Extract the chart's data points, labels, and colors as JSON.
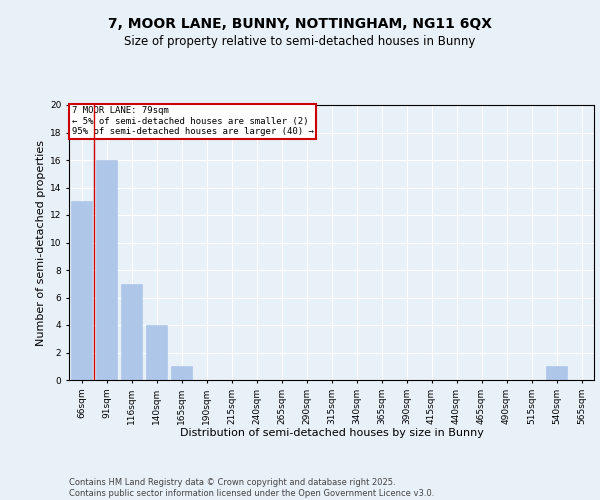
{
  "title": "7, MOOR LANE, BUNNY, NOTTINGHAM, NG11 6QX",
  "subtitle": "Size of property relative to semi-detached houses in Bunny",
  "xlabel": "Distribution of semi-detached houses by size in Bunny",
  "ylabel": "Number of semi-detached properties",
  "footer": "Contains HM Land Registry data © Crown copyright and database right 2025.\nContains public sector information licensed under the Open Government Licence v3.0.",
  "categories": [
    "66sqm",
    "91sqm",
    "116sqm",
    "140sqm",
    "165sqm",
    "190sqm",
    "215sqm",
    "240sqm",
    "265sqm",
    "290sqm",
    "315sqm",
    "340sqm",
    "365sqm",
    "390sqm",
    "415sqm",
    "440sqm",
    "465sqm",
    "490sqm",
    "515sqm",
    "540sqm",
    "565sqm"
  ],
  "values": [
    13,
    16,
    7,
    4,
    1,
    0,
    0,
    0,
    0,
    0,
    0,
    0,
    0,
    0,
    0,
    0,
    0,
    0,
    0,
    1,
    0
  ],
  "bar_color": "#aec6e8",
  "bar_edge_color": "#aec6e8",
  "subject_line_color": "#cc0000",
  "annotation_text": "7 MOOR LANE: 79sqm\n← 5% of semi-detached houses are smaller (2)\n95% of semi-detached houses are larger (40) →",
  "annotation_box_color": "#cc0000",
  "ylim": [
    0,
    20
  ],
  "yticks": [
    0,
    2,
    4,
    6,
    8,
    10,
    12,
    14,
    16,
    18,
    20
  ],
  "bg_color": "#e8f0f8",
  "plot_bg_color": "#e8f0f8",
  "grid_color": "#ffffff",
  "title_fontsize": 10,
  "subtitle_fontsize": 8.5,
  "label_fontsize": 8,
  "tick_fontsize": 6.5,
  "footer_fontsize": 6
}
